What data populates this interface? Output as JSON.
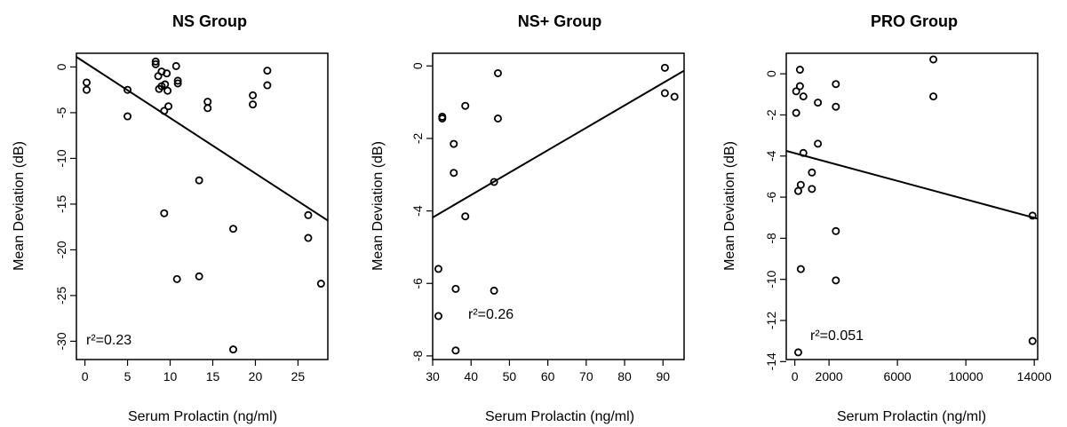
{
  "chart_data": [
    {
      "type": "scatter",
      "title": "NS Group",
      "xlabel": "Serum Prolactin (ng/ml)",
      "ylabel": "Mean Deviation (dB)",
      "xlim": [
        -1,
        28.5
      ],
      "ylim": [
        -32,
        1.5
      ],
      "xticks": [
        0,
        5,
        10,
        15,
        20,
        25
      ],
      "xtick_labels": [
        "0",
        "5",
        "10",
        "15",
        "20",
        "25"
      ],
      "yticks": [
        0,
        -5,
        -10,
        -15,
        -20,
        -25,
        -30
      ],
      "ytick_labels": [
        "0",
        "-5",
        "-10",
        "-15",
        "-20",
        "-25",
        "-30"
      ],
      "annotation": "r²=0.23",
      "regression_line": {
        "x": [
          -1,
          28.5
        ],
        "y": [
          1.1,
          -16.8
        ]
      },
      "points": [
        {
          "x": 0.2,
          "y": -1.7
        },
        {
          "x": 0.2,
          "y": -2.5
        },
        {
          "x": 5.0,
          "y": -2.5
        },
        {
          "x": 5.0,
          "y": -5.4
        },
        {
          "x": 8.3,
          "y": 0.6
        },
        {
          "x": 8.3,
          "y": 0.3
        },
        {
          "x": 8.6,
          "y": -1.0
        },
        {
          "x": 8.7,
          "y": -2.4
        },
        {
          "x": 9.0,
          "y": -0.5
        },
        {
          "x": 9.0,
          "y": -2.1
        },
        {
          "x": 9.3,
          "y": -4.8
        },
        {
          "x": 9.4,
          "y": -1.9
        },
        {
          "x": 9.6,
          "y": -0.7
        },
        {
          "x": 9.7,
          "y": -2.6
        },
        {
          "x": 9.8,
          "y": -4.3
        },
        {
          "x": 10.7,
          "y": 0.1
        },
        {
          "x": 10.9,
          "y": -1.5
        },
        {
          "x": 10.9,
          "y": -1.8
        },
        {
          "x": 9.3,
          "y": -16.0
        },
        {
          "x": 10.8,
          "y": -23.2
        },
        {
          "x": 13.4,
          "y": -12.4
        },
        {
          "x": 13.4,
          "y": -22.9
        },
        {
          "x": 14.4,
          "y": -3.8
        },
        {
          "x": 14.4,
          "y": -4.5
        },
        {
          "x": 17.4,
          "y": -17.7
        },
        {
          "x": 17.4,
          "y": -30.9
        },
        {
          "x": 19.7,
          "y": -3.1
        },
        {
          "x": 19.7,
          "y": -4.1
        },
        {
          "x": 21.4,
          "y": -0.4
        },
        {
          "x": 21.4,
          "y": -2.0
        },
        {
          "x": 26.2,
          "y": -16.2
        },
        {
          "x": 26.2,
          "y": -18.7
        },
        {
          "x": 27.7,
          "y": -23.7
        }
      ]
    },
    {
      "type": "scatter",
      "title": "NS+ Group",
      "xlabel": "Serum Prolactin (ng/ml)",
      "ylabel": "Mean Deviation (dB)",
      "xlim": [
        30,
        95.5
      ],
      "ylim": [
        -8.1,
        0.35
      ],
      "xticks": [
        30,
        40,
        50,
        60,
        70,
        80,
        90
      ],
      "xtick_labels": [
        "30",
        "40",
        "50",
        "60",
        "70",
        "80",
        "90"
      ],
      "yticks": [
        0,
        -2,
        -4,
        -6,
        -8
      ],
      "ytick_labels": [
        "0",
        "-2",
        "-4",
        "-6",
        "-8"
      ],
      "annotation": "r²=0.26",
      "regression_line": {
        "x": [
          30,
          95.5
        ],
        "y": [
          -4.18,
          -0.13
        ]
      },
      "points": [
        {
          "x": 31.5,
          "y": -5.6
        },
        {
          "x": 31.5,
          "y": -6.9
        },
        {
          "x": 32.5,
          "y": -1.4
        },
        {
          "x": 32.5,
          "y": -1.45
        },
        {
          "x": 35.5,
          "y": -2.15
        },
        {
          "x": 35.5,
          "y": -2.95
        },
        {
          "x": 36.0,
          "y": -6.15
        },
        {
          "x": 36.0,
          "y": -7.85
        },
        {
          "x": 38.5,
          "y": -1.1
        },
        {
          "x": 38.5,
          "y": -4.15
        },
        {
          "x": 46.0,
          "y": -3.2
        },
        {
          "x": 46.0,
          "y": -6.2
        },
        {
          "x": 47.0,
          "y": -0.2
        },
        {
          "x": 47.0,
          "y": -1.45
        },
        {
          "x": 90.5,
          "y": -0.05
        },
        {
          "x": 90.5,
          "y": -0.75
        },
        {
          "x": 93.0,
          "y": -0.85
        }
      ]
    },
    {
      "type": "scatter",
      "title": "PRO Group",
      "xlabel": "Serum Prolactin (ng/ml)",
      "ylabel": "Mean Deviation (dB)",
      "xlim": [
        -500,
        14200
      ],
      "ylim": [
        -13.9,
        1.0
      ],
      "xticks": [
        0,
        2000,
        6000,
        10000,
        14000
      ],
      "xtick_labels": [
        "0",
        "2000",
        "6000",
        "10000",
        "14000"
      ],
      "yticks": [
        0,
        -2,
        -4,
        -6,
        -8,
        -10,
        -12,
        -14
      ],
      "ytick_labels": [
        "0",
        "-2",
        "-4",
        "-6",
        "-8",
        "-10",
        "-12",
        "-14"
      ],
      "annotation": "r²=0.051",
      "regression_line": {
        "x": [
          -500,
          14200
        ],
        "y": [
          -3.75,
          -7.05
        ]
      },
      "points": [
        {
          "x": 80,
          "y": -0.85
        },
        {
          "x": 80,
          "y": -1.9
        },
        {
          "x": 200,
          "y": -5.7
        },
        {
          "x": 200,
          "y": -13.55
        },
        {
          "x": 300,
          "y": 0.2
        },
        {
          "x": 300,
          "y": -0.6
        },
        {
          "x": 350,
          "y": -5.4
        },
        {
          "x": 350,
          "y": -9.5
        },
        {
          "x": 500,
          "y": -1.1
        },
        {
          "x": 500,
          "y": -3.85
        },
        {
          "x": 1000,
          "y": -4.8
        },
        {
          "x": 1000,
          "y": -5.6
        },
        {
          "x": 1350,
          "y": -1.4
        },
        {
          "x": 1350,
          "y": -3.4
        },
        {
          "x": 2400,
          "y": -0.5
        },
        {
          "x": 2400,
          "y": -1.6
        },
        {
          "x": 2400,
          "y": -7.65
        },
        {
          "x": 2400,
          "y": -10.05
        },
        {
          "x": 8100,
          "y": 0.7
        },
        {
          "x": 8100,
          "y": -1.1
        },
        {
          "x": 13900,
          "y": -6.9
        },
        {
          "x": 13900,
          "y": -13.0
        }
      ]
    }
  ]
}
